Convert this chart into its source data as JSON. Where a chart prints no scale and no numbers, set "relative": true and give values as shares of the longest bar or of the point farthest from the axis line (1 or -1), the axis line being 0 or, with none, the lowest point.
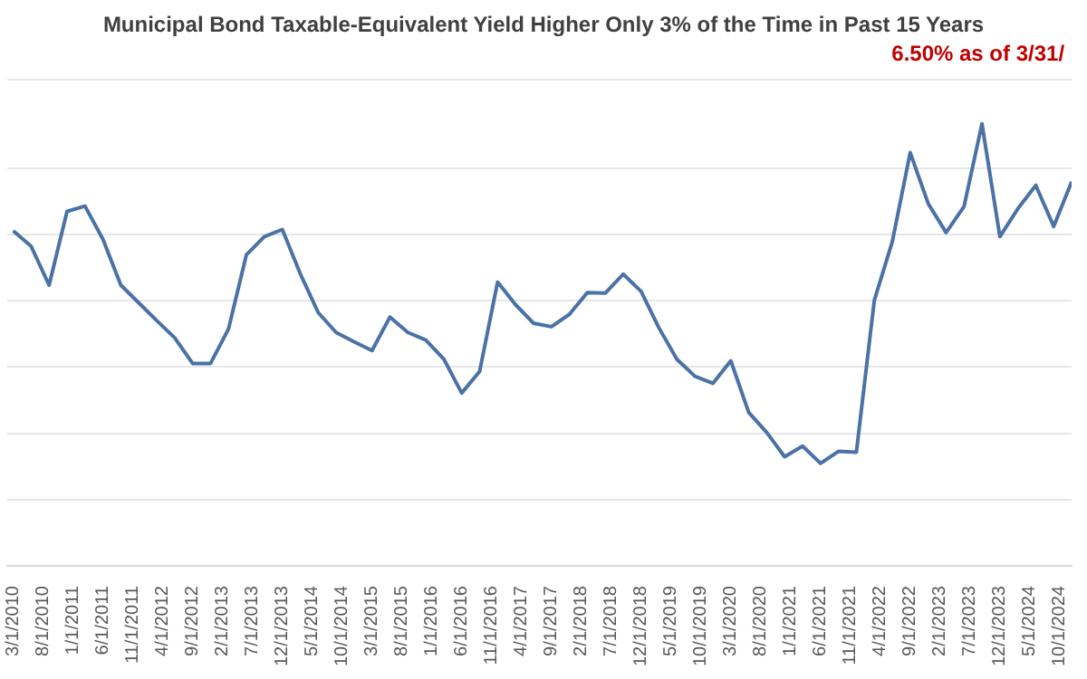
{
  "chart_data": {
    "type": "line",
    "title": "Municipal Bond Taxable-Equivalent Yield Higher Only 3% of the Time in Past 15 Years",
    "annotations": [
      "6.50% as of 3/31/"
    ],
    "relative": true,
    "grid": "y",
    "legend": false,
    "x": [
      "2010-03",
      "2010-06",
      "2010-09",
      "2010-12",
      "2011-03",
      "2011-06",
      "2011-09",
      "2011-12",
      "2012-03",
      "2012-06",
      "2012-09",
      "2012-12",
      "2013-03",
      "2013-06",
      "2013-09",
      "2013-12",
      "2014-03",
      "2014-06",
      "2014-09",
      "2014-12",
      "2015-03",
      "2015-06",
      "2015-09",
      "2015-12",
      "2016-03",
      "2016-06",
      "2016-09",
      "2016-12",
      "2017-03",
      "2017-06",
      "2017-09",
      "2017-12",
      "2018-03",
      "2018-06",
      "2018-09",
      "2018-12",
      "2019-03",
      "2019-06",
      "2019-09",
      "2019-12",
      "2020-03",
      "2020-06",
      "2020-09",
      "2020-12",
      "2021-03",
      "2021-06",
      "2021-09",
      "2021-12",
      "2022-03",
      "2022-06",
      "2022-09",
      "2022-12",
      "2023-03",
      "2023-06",
      "2023-09",
      "2023-12",
      "2024-03",
      "2024-06",
      "2024-09",
      "2024-12"
    ],
    "xlim": [
      "2010-02",
      "2024-12"
    ],
    "xticks": [
      {
        "value": "2010-03",
        "label": "3/1/2010"
      },
      {
        "value": "2010-08",
        "label": "8/1/2010"
      },
      {
        "value": "2011-01",
        "label": "1/1/2011"
      },
      {
        "value": "2011-06",
        "label": "6/1/2011"
      },
      {
        "value": "2011-11",
        "label": "11/1/2011"
      },
      {
        "value": "2012-04",
        "label": "4/1/2012"
      },
      {
        "value": "2012-09",
        "label": "9/1/2012"
      },
      {
        "value": "2013-02",
        "label": "2/1/2013"
      },
      {
        "value": "2013-07",
        "label": "7/1/2013"
      },
      {
        "value": "2013-12",
        "label": "12/1/2013"
      },
      {
        "value": "2014-05",
        "label": "5/1/2014"
      },
      {
        "value": "2014-10",
        "label": "10/1/2014"
      },
      {
        "value": "2015-03",
        "label": "3/1/2015"
      },
      {
        "value": "2015-08",
        "label": "8/1/2015"
      },
      {
        "value": "2016-01",
        "label": "1/1/2016"
      },
      {
        "value": "2016-06",
        "label": "6/1/2016"
      },
      {
        "value": "2016-11",
        "label": "11/1/2016"
      },
      {
        "value": "2017-04",
        "label": "4/1/2017"
      },
      {
        "value": "2017-09",
        "label": "9/1/2017"
      },
      {
        "value": "2018-02",
        "label": "2/1/2018"
      },
      {
        "value": "2018-07",
        "label": "7/1/2018"
      },
      {
        "value": "2018-12",
        "label": "12/1/2018"
      },
      {
        "value": "2019-05",
        "label": "5/1/2019"
      },
      {
        "value": "2019-10",
        "label": "10/1/2019"
      },
      {
        "value": "2020-03",
        "label": "3/1/2020"
      },
      {
        "value": "2020-08",
        "label": "8/1/2020"
      },
      {
        "value": "2021-01",
        "label": "1/1/2021"
      },
      {
        "value": "2021-06",
        "label": "6/1/2021"
      },
      {
        "value": "2021-11",
        "label": "11/1/2021"
      },
      {
        "value": "2022-04",
        "label": "4/1/2022"
      },
      {
        "value": "2022-09",
        "label": "9/1/2022"
      },
      {
        "value": "2023-02",
        "label": "2/1/2023"
      },
      {
        "value": "2023-07",
        "label": "7/1/2023"
      },
      {
        "value": "2023-12",
        "label": "12/1/2023"
      },
      {
        "value": "2024-05",
        "label": "5/1/2024"
      },
      {
        "value": "2024-10",
        "label": "10/1/2024"
      }
    ],
    "series": [
      {
        "color": "#4a72a6",
        "values": [
          0.758,
          0.723,
          0.635,
          0.802,
          0.814,
          0.739,
          0.635,
          0.595,
          0.555,
          0.516,
          0.458,
          0.458,
          0.536,
          0.704,
          0.745,
          0.761,
          0.661,
          0.573,
          0.528,
          0.507,
          0.487,
          0.563,
          0.528,
          0.511,
          0.468,
          0.391,
          0.44,
          0.642,
          0.591,
          0.549,
          0.541,
          0.569,
          0.618,
          0.617,
          0.66,
          0.621,
          0.538,
          0.467,
          0.429,
          0.413,
          0.464,
          0.347,
          0.302,
          0.247,
          0.271,
          0.232,
          0.259,
          0.257,
          0.601,
          0.733,
          0.935,
          0.82,
          0.754,
          0.813,
          1,
          0.745,
          0.808,
          0.861,
          0.768,
          0.869
        ]
      }
    ]
  }
}
